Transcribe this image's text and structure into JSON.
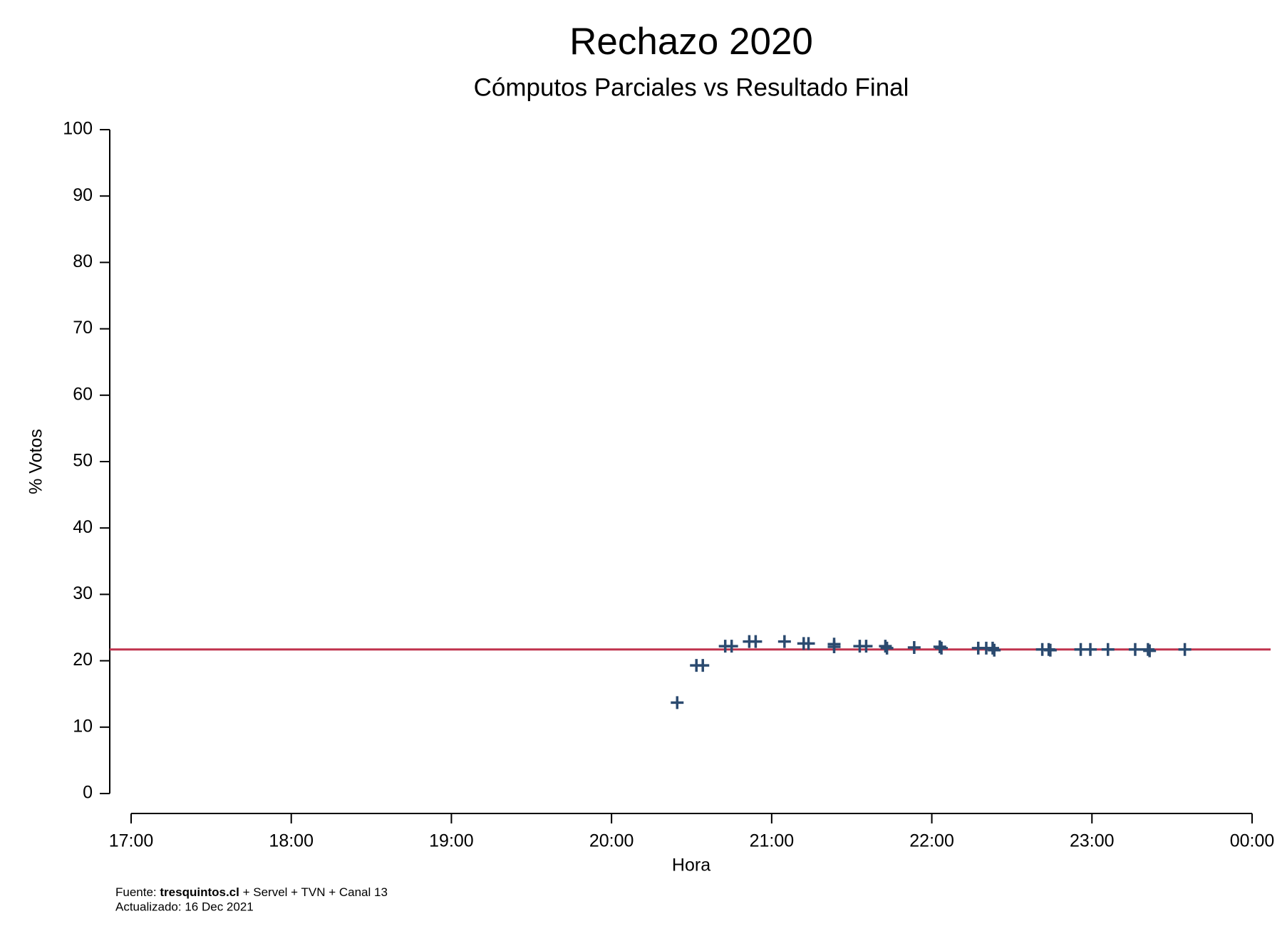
{
  "chart_data": {
    "type": "scatter",
    "title": "Rechazo 2020",
    "subtitle": "Cómputos Parciales vs Resultado Final",
    "x_label": "Hora",
    "y_label": "% Votos",
    "x": [
      20.41,
      20.53,
      20.57,
      20.71,
      20.75,
      20.86,
      20.9,
      21.08,
      21.2,
      21.23,
      21.39,
      21.39,
      21.55,
      21.59,
      21.71,
      21.72,
      21.89,
      22.05,
      22.06,
      22.29,
      22.34,
      22.38,
      22.39,
      22.69,
      22.73,
      22.74,
      22.93,
      22.99,
      23.1,
      23.27,
      23.35,
      23.36,
      23.58
    ],
    "values": [
      13.7,
      19.3,
      19.3,
      22.2,
      22.2,
      22.9,
      22.9,
      22.9,
      22.6,
      22.6,
      22.5,
      22.1,
      22.2,
      22.2,
      22.2,
      21.9,
      22.0,
      22.1,
      21.9,
      21.9,
      21.9,
      21.9,
      21.6,
      21.7,
      21.7,
      21.6,
      21.7,
      21.7,
      21.7,
      21.7,
      21.7,
      21.5,
      21.7
    ],
    "color": "#2b4a6f",
    "reference_line": {
      "value": 21.7,
      "color": "#c0334d"
    },
    "xlim": [
      17,
      24
    ],
    "xticks": [
      {
        "value": 17,
        "label": "17:00"
      },
      {
        "value": 18,
        "label": "18:00"
      },
      {
        "value": 19,
        "label": "19:00"
      },
      {
        "value": 20,
        "label": "20:00"
      },
      {
        "value": 21,
        "label": "21:00"
      },
      {
        "value": 22,
        "label": "22:00"
      },
      {
        "value": 23,
        "label": "23:00"
      },
      {
        "value": 24,
        "label": "00:00"
      }
    ],
    "ylim": [
      0,
      100
    ],
    "yticks": [
      0,
      10,
      20,
      30,
      40,
      50,
      60,
      70,
      80,
      90,
      100
    ],
    "grid": false,
    "source_prefix": "Fuente:",
    "source_bold": "tresquintos.cl",
    "source_rest": "+ Servel + TVN + Canal 13",
    "updated": "Actualizado: 16 Dec 2021"
  }
}
